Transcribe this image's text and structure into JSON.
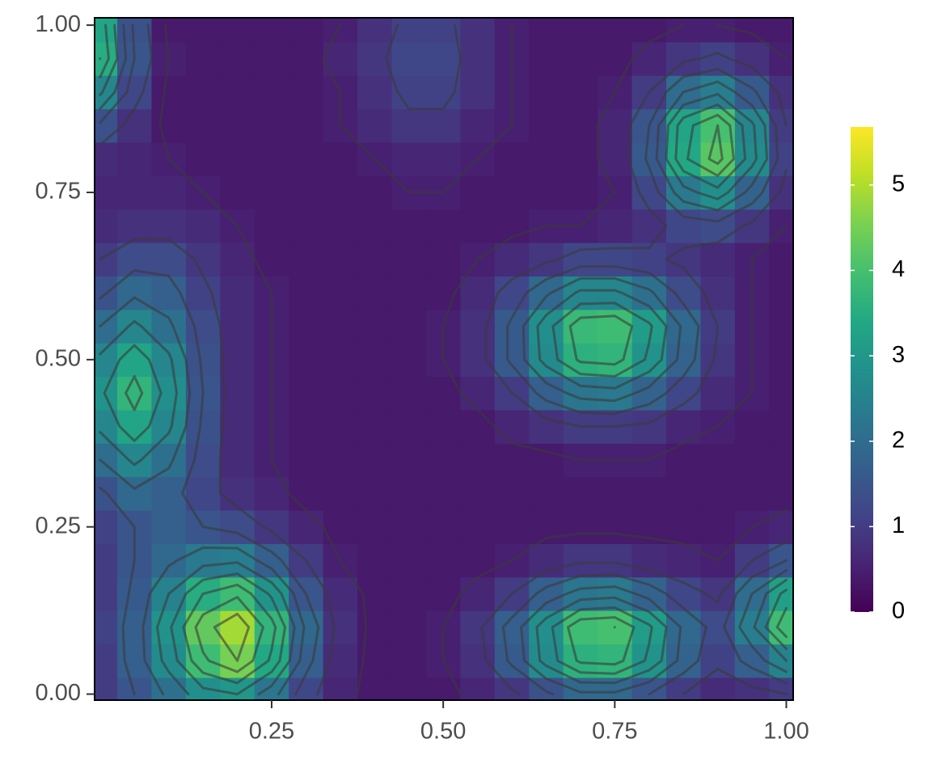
{
  "chart_data": {
    "type": "heatmap",
    "colormap": "viridis",
    "fill_lim": [
      0,
      5.68
    ],
    "fill_ticks": [
      0,
      1,
      2,
      3,
      4,
      5
    ],
    "contour_levels": [
      0.5,
      1,
      1.5,
      2,
      2.5,
      3,
      3.5,
      4,
      4.5
    ],
    "contour_color": "#3a3a3a",
    "xlim": [
      -0.008,
      1.01
    ],
    "ylim": [
      -0.009,
      1.011
    ],
    "xticks": [
      0.25,
      {
        "value": 0.5,
        "label": "0.50"
      },
      0.75,
      {
        "value": 1,
        "label": "1.00"
      }
    ],
    "yticks": [
      {
        "value": 0,
        "label": "0.00"
      },
      0.25,
      {
        "value": 0.5,
        "label": "0.50"
      },
      0.75,
      {
        "value": 1,
        "label": "1.00"
      }
    ],
    "x": [
      0,
      0.05,
      0.1,
      0.15,
      0.2,
      0.25,
      0.3,
      0.35,
      0.4,
      0.45,
      0.5,
      0.55,
      0.6,
      0.65,
      0.7,
      0.75,
      0.8,
      0.85,
      0.9,
      0.95,
      1
    ],
    "y": [
      0,
      0.05,
      0.1,
      0.15,
      0.2,
      0.25,
      0.3,
      0.35,
      0.4,
      0.45,
      0.5,
      0.55,
      0.6,
      0.65,
      0.7,
      0.75,
      0.8,
      0.85,
      0.9,
      0.95,
      1
    ],
    "z": [
      [
        1.0,
        1.5,
        2.1,
        2.8,
        3.0,
        2.2,
        1.2,
        0.6,
        0.4,
        0.4,
        0.4,
        0.6,
        0.9,
        1.4,
        1.9,
        1.9,
        1.5,
        1.0,
        0.7,
        0.8,
        1.0
      ],
      [
        1.0,
        1.7,
        2.7,
        3.9,
        4.5,
        3.4,
        1.7,
        0.7,
        0.4,
        0.4,
        0.5,
        0.8,
        1.6,
        2.7,
        3.6,
        3.7,
        2.9,
        1.8,
        1.1,
        1.7,
        2.5
      ],
      [
        1.1,
        1.7,
        2.9,
        4.3,
        4.9,
        3.7,
        1.9,
        0.8,
        0.4,
        0.4,
        0.5,
        0.9,
        1.7,
        2.8,
        3.9,
        4.0,
        3.1,
        1.9,
        1.3,
        2.4,
        3.9
      ],
      [
        1.0,
        1.6,
        2.5,
        3.5,
        3.9,
        2.9,
        1.5,
        0.7,
        0.4,
        0.4,
        0.4,
        0.6,
        1.0,
        1.7,
        2.2,
        2.3,
        1.8,
        1.2,
        0.9,
        2.0,
        3.2
      ],
      [
        1.0,
        1.5,
        1.9,
        2.3,
        2.4,
        1.7,
        1.0,
        0.5,
        0.4,
        0.4,
        0.4,
        0.4,
        0.5,
        0.7,
        0.9,
        0.9,
        0.7,
        0.6,
        0.5,
        1.0,
        1.5
      ],
      [
        1.1,
        1.5,
        1.7,
        1.5,
        1.3,
        0.9,
        0.6,
        0.4,
        0.4,
        0.4,
        0.4,
        0.4,
        0.4,
        0.4,
        0.4,
        0.4,
        0.4,
        0.4,
        0.4,
        0.5,
        0.6
      ],
      [
        1.4,
        1.9,
        1.7,
        1.2,
        0.8,
        0.6,
        0.4,
        0.4,
        0.4,
        0.4,
        0.4,
        0.4,
        0.4,
        0.4,
        0.4,
        0.4,
        0.4,
        0.4,
        0.4,
        0.4,
        0.4
      ],
      [
        2.0,
        2.6,
        2.1,
        1.3,
        0.7,
        0.5,
        0.4,
        0.4,
        0.4,
        0.4,
        0.4,
        0.4,
        0.4,
        0.4,
        0.5,
        0.5,
        0.5,
        0.4,
        0.4,
        0.4,
        0.4
      ],
      [
        2.6,
        3.3,
        2.6,
        1.4,
        0.7,
        0.5,
        0.4,
        0.4,
        0.4,
        0.4,
        0.4,
        0.4,
        0.6,
        0.8,
        1.0,
        1.0,
        0.9,
        0.6,
        0.5,
        0.4,
        0.4
      ],
      [
        2.9,
        3.7,
        2.8,
        1.5,
        0.7,
        0.5,
        0.4,
        0.4,
        0.4,
        0.4,
        0.4,
        0.6,
        1.0,
        1.7,
        2.2,
        2.3,
        1.8,
        1.2,
        0.7,
        0.5,
        0.4
      ],
      [
        2.6,
        3.3,
        2.6,
        1.4,
        0.7,
        0.5,
        0.4,
        0.4,
        0.4,
        0.4,
        0.5,
        0.8,
        1.6,
        2.7,
        3.6,
        3.7,
        2.9,
        1.8,
        0.9,
        0.5,
        0.4
      ],
      [
        2.0,
        2.6,
        2.1,
        1.3,
        0.7,
        0.5,
        0.4,
        0.4,
        0.4,
        0.4,
        0.5,
        0.8,
        1.6,
        2.8,
        3.8,
        3.9,
        3.1,
        1.9,
        1.0,
        0.5,
        0.4
      ],
      [
        1.4,
        1.9,
        1.7,
        1.1,
        0.7,
        0.5,
        0.4,
        0.4,
        0.4,
        0.4,
        0.4,
        0.7,
        1.2,
        1.9,
        2.6,
        2.6,
        2.1,
        1.3,
        0.8,
        0.5,
        0.4
      ],
      [
        1.0,
        1.3,
        1.3,
        0.9,
        0.6,
        0.4,
        0.4,
        0.4,
        0.4,
        0.4,
        0.4,
        0.5,
        0.7,
        0.9,
        1.2,
        1.2,
        1.1,
        0.9,
        0.7,
        0.5,
        0.4
      ],
      [
        0.7,
        0.8,
        0.8,
        0.7,
        0.5,
        0.4,
        0.4,
        0.4,
        0.4,
        0.4,
        0.4,
        0.4,
        0.4,
        0.5,
        0.5,
        0.6,
        0.8,
        1.2,
        1.3,
        0.9,
        0.5
      ],
      [
        0.6,
        0.6,
        0.6,
        0.5,
        0.4,
        0.4,
        0.4,
        0.4,
        0.4,
        0.5,
        0.5,
        0.4,
        0.4,
        0.4,
        0.4,
        0.5,
        1.2,
        2.3,
        2.8,
        1.8,
        0.8
      ],
      [
        0.7,
        0.6,
        0.5,
        0.4,
        0.4,
        0.4,
        0.4,
        0.4,
        0.5,
        0.6,
        0.6,
        0.5,
        0.4,
        0.4,
        0.4,
        0.6,
        1.6,
        3.4,
        4.2,
        2.7,
        1.1
      ],
      [
        1.4,
        0.8,
        0.4,
        0.4,
        0.4,
        0.4,
        0.4,
        0.5,
        0.7,
        0.9,
        0.9,
        0.6,
        0.5,
        0.4,
        0.4,
        0.6,
        1.5,
        3.3,
        4.0,
        2.6,
        1.0
      ],
      [
        2.6,
        1.2,
        0.4,
        0.4,
        0.4,
        0.4,
        0.4,
        0.5,
        0.8,
        1.1,
        1.1,
        0.8,
        0.5,
        0.4,
        0.4,
        0.5,
        1.0,
        2.0,
        2.4,
        1.6,
        0.8
      ],
      [
        3.5,
        1.5,
        0.5,
        0.4,
        0.4,
        0.4,
        0.4,
        0.6,
        0.9,
        1.2,
        1.2,
        0.8,
        0.5,
        0.4,
        0.4,
        0.4,
        0.6,
        0.9,
        1.1,
        0.8,
        0.5
      ],
      [
        3.3,
        1.4,
        0.4,
        0.4,
        0.4,
        0.4,
        0.4,
        0.5,
        0.8,
        1.1,
        1.1,
        0.8,
        0.5,
        0.4,
        0.4,
        0.4,
        0.4,
        0.5,
        0.5,
        0.4,
        0.4
      ]
    ]
  }
}
